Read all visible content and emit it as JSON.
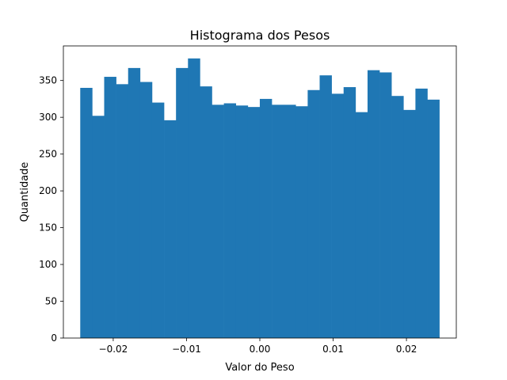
{
  "chart_data": {
    "type": "bar",
    "subtype": "histogram",
    "title": "Histograma dos Pesos",
    "xlabel": "Valor do Peso",
    "ylabel": "Quantidade",
    "color": "#1f77b4",
    "bin_start": -0.0245,
    "bin_width": 0.001633,
    "values": [
      340,
      302,
      355,
      345,
      367,
      348,
      320,
      296,
      367,
      380,
      342,
      317,
      319,
      316,
      314,
      325,
      317,
      317,
      315,
      337,
      357,
      332,
      341,
      307,
      364,
      361,
      329,
      310,
      339,
      324
    ],
    "xlim": [
      -0.0268,
      0.0268
    ],
    "ylim": [
      0,
      397
    ],
    "xticks": [
      {
        "value": -0.02,
        "label": "−0.02"
      },
      {
        "value": -0.01,
        "label": "−0.01"
      },
      {
        "value": 0.0,
        "label": "0.00"
      },
      {
        "value": 0.01,
        "label": "0.01"
      },
      {
        "value": 0.02,
        "label": "0.02"
      }
    ],
    "yticks": [
      {
        "value": 0,
        "label": "0"
      },
      {
        "value": 50,
        "label": "50"
      },
      {
        "value": 100,
        "label": "100"
      },
      {
        "value": 150,
        "label": "150"
      },
      {
        "value": 200,
        "label": "200"
      },
      {
        "value": 250,
        "label": "250"
      },
      {
        "value": 300,
        "label": "300"
      },
      {
        "value": 350,
        "label": "350"
      }
    ],
    "grid": false,
    "legend": false
  }
}
